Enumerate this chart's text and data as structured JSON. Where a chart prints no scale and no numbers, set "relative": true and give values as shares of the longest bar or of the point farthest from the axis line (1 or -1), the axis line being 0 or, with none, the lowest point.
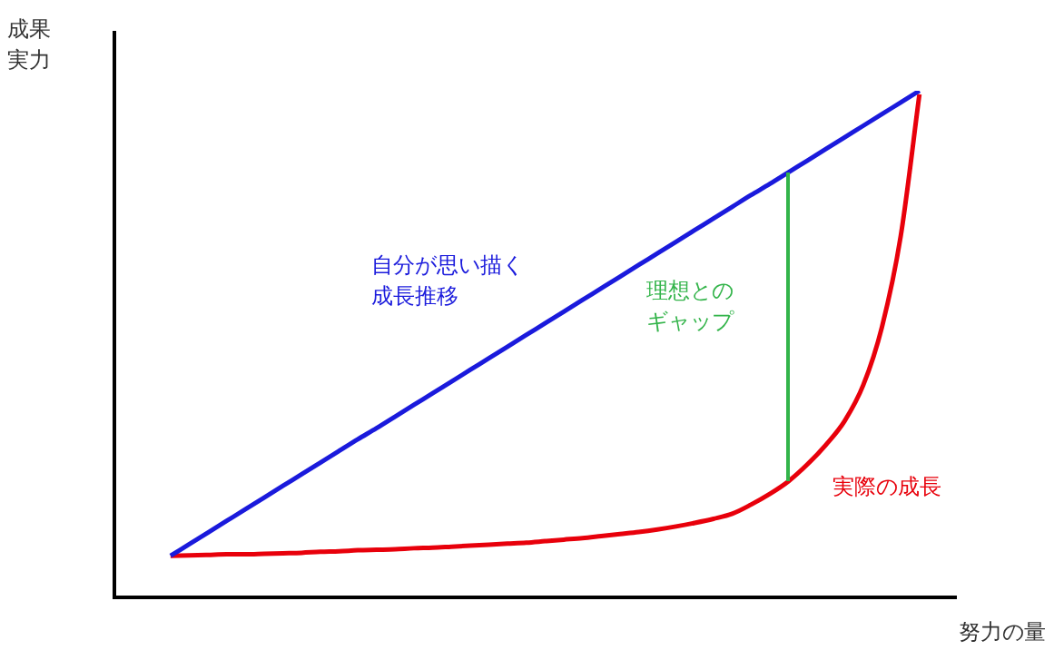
{
  "chart_data": {
    "type": "line",
    "relative": true,
    "xlabel": "努力の量",
    "ylabel": "成果実力",
    "categories": [
      null,
      null,
      null,
      null,
      null,
      null,
      null,
      null,
      null,
      null,
      null,
      null,
      null,
      null,
      null,
      null,
      null,
      null,
      null,
      null,
      null,
      null,
      null,
      null,
      null,
      null,
      null,
      null,
      null,
      null,
      null,
      null,
      null,
      null,
      null,
      null,
      null,
      null,
      null,
      null,
      null,
      null,
      null,
      null,
      null,
      null
    ],
    "series": [
      {
        "name": "自分が思い描く成長推移",
        "color": "#1a1adc",
        "values": [
          null,
          null,
          null,
          0.082,
          0.105,
          0.128,
          0.151,
          0.174,
          0.197,
          0.22,
          0.243,
          0.266,
          0.289,
          0.312,
          0.334,
          0.357,
          0.38,
          0.403,
          0.426,
          0.449,
          0.472,
          0.495,
          0.518,
          0.541,
          0.564,
          0.587,
          0.61,
          0.633,
          0.656,
          0.679,
          0.702,
          0.725,
          0.748,
          0.771,
          0.794,
          0.816,
          0.839,
          0.862,
          0.885,
          0.908,
          0.931,
          0.954,
          0.977,
          1.0,
          null,
          null
        ]
      },
      {
        "name": "実際の成長",
        "color": "#e8000b",
        "values": [
          null,
          null,
          null,
          0.082,
          0.083,
          0.084,
          0.085,
          0.085,
          0.086,
          0.087,
          0.088,
          0.09,
          0.091,
          0.093,
          0.094,
          0.095,
          0.097,
          0.098,
          0.1,
          0.102,
          0.104,
          0.106,
          0.108,
          0.111,
          0.114,
          0.117,
          0.121,
          0.125,
          0.129,
          0.134,
          0.14,
          0.147,
          0.155,
          0.165,
          0.183,
          0.204,
          0.229,
          0.262,
          0.301,
          0.348,
          0.419,
          0.534,
          0.713,
          0.993,
          null,
          null
        ]
      }
    ],
    "annotations": [
      "理想とのギャップ"
    ]
  }
}
